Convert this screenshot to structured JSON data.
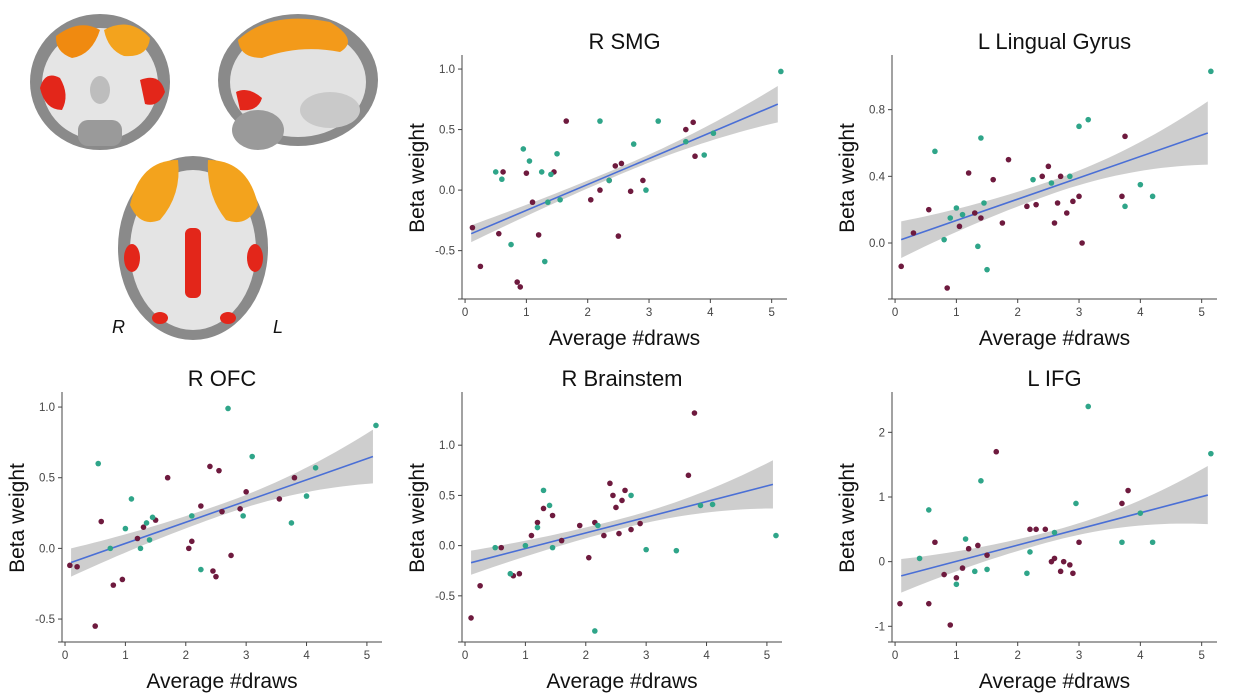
{
  "brain": {
    "left_label": "R",
    "right_label": "L"
  },
  "colors": {
    "series_a": "#6e1a3e",
    "series_b": "#2fa589",
    "fit": "#4a6fd6",
    "band": "#bdbdbd",
    "axis": "#444444"
  },
  "chart_data": [
    {
      "type": "scatter",
      "title": "R SMG",
      "xlabel": "Average #draws",
      "ylabel": "Beta weight",
      "xlim": [
        -0.05,
        5.25
      ],
      "ylim": [
        -0.85,
        1.05
      ],
      "xticks": [
        0,
        1,
        2,
        3,
        4,
        5
      ],
      "yticks": [
        -0.5,
        0.0,
        0.5,
        1.0
      ],
      "ytick_labels": [
        "-0.5",
        "0.0",
        "0.5",
        "1.0"
      ],
      "fit": {
        "x": [
          0.1,
          5.1
        ],
        "y": [
          -0.36,
          0.71
        ]
      },
      "band_halfwidth": [
        0.07,
        0.03,
        0.15
      ],
      "series": [
        {
          "color": "series_a",
          "points": [
            [
              0.12,
              -0.31
            ],
            [
              0.25,
              -0.63
            ],
            [
              0.55,
              -0.36
            ],
            [
              0.62,
              0.15
            ],
            [
              0.85,
              -0.76
            ],
            [
              0.9,
              -0.8
            ],
            [
              1.0,
              0.14
            ],
            [
              1.1,
              -0.1
            ],
            [
              1.2,
              -0.37
            ],
            [
              1.45,
              0.15
            ],
            [
              1.65,
              0.57
            ],
            [
              2.05,
              -0.08
            ],
            [
              2.2,
              0.0
            ],
            [
              2.35,
              0.08
            ],
            [
              2.45,
              0.2
            ],
            [
              2.5,
              -0.38
            ],
            [
              2.55,
              0.22
            ],
            [
              2.7,
              -0.01
            ],
            [
              2.9,
              0.08
            ],
            [
              3.6,
              0.5
            ],
            [
              3.72,
              0.56
            ],
            [
              3.75,
              0.28
            ]
          ]
        },
        {
          "color": "series_b",
          "points": [
            [
              0.5,
              0.15
            ],
            [
              0.6,
              0.09
            ],
            [
              0.75,
              -0.45
            ],
            [
              0.95,
              0.34
            ],
            [
              1.05,
              0.24
            ],
            [
              1.25,
              0.15
            ],
            [
              1.3,
              -0.59
            ],
            [
              1.35,
              -0.1
            ],
            [
              1.4,
              0.13
            ],
            [
              1.5,
              0.3
            ],
            [
              1.55,
              -0.08
            ],
            [
              2.2,
              0.57
            ],
            [
              2.35,
              0.08
            ],
            [
              2.75,
              0.38
            ],
            [
              2.95,
              0.0
            ],
            [
              3.15,
              0.57
            ],
            [
              3.6,
              0.4
            ],
            [
              3.9,
              0.29
            ],
            [
              4.05,
              0.47
            ],
            [
              5.15,
              0.98
            ]
          ]
        }
      ]
    },
    {
      "type": "scatter",
      "title": "L Lingual Gyrus",
      "xlabel": "Average #draws",
      "ylabel": "Beta weight",
      "xlim": [
        -0.05,
        5.25
      ],
      "ylim": [
        -0.3,
        1.08
      ],
      "xticks": [
        0,
        1,
        2,
        3,
        4,
        5
      ],
      "yticks": [
        0.0,
        0.4,
        0.8
      ],
      "ytick_labels": [
        "0.0",
        "0.4",
        "0.8"
      ],
      "fit": {
        "x": [
          0.1,
          5.1
        ],
        "y": [
          0.02,
          0.66
        ]
      },
      "band_halfwidth": [
        0.11,
        0.04,
        0.19
      ],
      "series": [
        {
          "color": "series_a",
          "points": [
            [
              0.1,
              -0.14
            ],
            [
              0.3,
              0.06
            ],
            [
              0.55,
              0.2
            ],
            [
              0.85,
              -0.27
            ],
            [
              1.05,
              0.1
            ],
            [
              1.2,
              0.42
            ],
            [
              1.3,
              0.18
            ],
            [
              1.4,
              0.15
            ],
            [
              1.6,
              0.38
            ],
            [
              1.75,
              0.12
            ],
            [
              1.85,
              0.5
            ],
            [
              2.15,
              0.22
            ],
            [
              2.3,
              0.23
            ],
            [
              2.4,
              0.4
            ],
            [
              2.5,
              0.46
            ],
            [
              2.6,
              0.12
            ],
            [
              2.65,
              0.24
            ],
            [
              2.7,
              0.4
            ],
            [
              2.8,
              0.18
            ],
            [
              2.9,
              0.25
            ],
            [
              3.0,
              0.28
            ],
            [
              3.05,
              0.0
            ],
            [
              3.7,
              0.28
            ],
            [
              3.75,
              0.64
            ]
          ]
        },
        {
          "color": "series_b",
          "points": [
            [
              0.65,
              0.55
            ],
            [
              0.8,
              0.02
            ],
            [
              0.9,
              0.15
            ],
            [
              1.0,
              0.21
            ],
            [
              1.1,
              0.17
            ],
            [
              1.35,
              -0.02
            ],
            [
              1.4,
              0.63
            ],
            [
              1.45,
              0.24
            ],
            [
              1.5,
              -0.16
            ],
            [
              2.25,
              0.38
            ],
            [
              2.55,
              0.36
            ],
            [
              2.85,
              0.4
            ],
            [
              3.0,
              0.7
            ],
            [
              3.15,
              0.74
            ],
            [
              3.75,
              0.22
            ],
            [
              4.0,
              0.35
            ],
            [
              4.2,
              0.28
            ],
            [
              5.15,
              1.03
            ]
          ]
        }
      ]
    },
    {
      "type": "scatter",
      "title": "R OFC",
      "xlabel": "Average #draws",
      "ylabel": "Beta weight",
      "xlim": [
        -0.05,
        5.25
      ],
      "ylim": [
        -0.62,
        1.05
      ],
      "xticks": [
        0,
        1,
        2,
        3,
        4,
        5
      ],
      "yticks": [
        -0.5,
        0.0,
        0.5,
        1.0
      ],
      "ytick_labels": [
        "-0.5",
        "0.0",
        "0.5",
        "1.0"
      ],
      "fit": {
        "x": [
          0.1,
          5.1
        ],
        "y": [
          -0.1,
          0.65
        ]
      },
      "band_halfwidth": [
        0.1,
        0.04,
        0.19
      ],
      "series": [
        {
          "color": "series_a",
          "points": [
            [
              0.08,
              -0.12
            ],
            [
              0.2,
              -0.13
            ],
            [
              0.5,
              -0.55
            ],
            [
              0.6,
              0.19
            ],
            [
              0.8,
              -0.26
            ],
            [
              0.95,
              -0.22
            ],
            [
              1.2,
              0.07
            ],
            [
              1.3,
              0.15
            ],
            [
              1.5,
              0.2
            ],
            [
              1.7,
              0.5
            ],
            [
              2.05,
              0.0
            ],
            [
              2.1,
              0.05
            ],
            [
              2.25,
              0.3
            ],
            [
              2.4,
              0.58
            ],
            [
              2.45,
              -0.16
            ],
            [
              2.5,
              -0.2
            ],
            [
              2.55,
              0.55
            ],
            [
              2.6,
              0.26
            ],
            [
              2.75,
              -0.05
            ],
            [
              2.9,
              0.28
            ],
            [
              3.0,
              0.4
            ],
            [
              3.55,
              0.35
            ],
            [
              3.8,
              0.5
            ]
          ]
        },
        {
          "color": "series_b",
          "points": [
            [
              0.55,
              0.6
            ],
            [
              0.75,
              0.0
            ],
            [
              1.0,
              0.14
            ],
            [
              1.1,
              0.35
            ],
            [
              1.25,
              0.0
            ],
            [
              1.35,
              0.18
            ],
            [
              1.4,
              0.06
            ],
            [
              1.45,
              0.22
            ],
            [
              2.1,
              0.23
            ],
            [
              2.25,
              -0.15
            ],
            [
              2.7,
              0.99
            ],
            [
              2.95,
              0.23
            ],
            [
              3.1,
              0.65
            ],
            [
              3.75,
              0.18
            ],
            [
              4.0,
              0.37
            ],
            [
              4.15,
              0.57
            ],
            [
              5.15,
              0.87
            ]
          ]
        }
      ]
    },
    {
      "type": "scatter",
      "title": "R Brainstem",
      "xlabel": "Average #draws",
      "ylabel": "Beta weight",
      "xlim": [
        -0.05,
        5.25
      ],
      "ylim": [
        -0.9,
        1.45
      ],
      "xticks": [
        0,
        1,
        2,
        3,
        4,
        5
      ],
      "yticks": [
        -0.5,
        0.0,
        0.5,
        1.0
      ],
      "ytick_labels": [
        "-0.5",
        "0.0",
        "0.5",
        "1.0"
      ],
      "fit": {
        "x": [
          0.1,
          5.1
        ],
        "y": [
          -0.17,
          0.61
        ]
      },
      "band_halfwidth": [
        0.12,
        0.05,
        0.24
      ],
      "series": [
        {
          "color": "series_a",
          "points": [
            [
              0.1,
              -0.72
            ],
            [
              0.25,
              -0.4
            ],
            [
              0.6,
              -0.02
            ],
            [
              0.8,
              -0.3
            ],
            [
              0.9,
              -0.28
            ],
            [
              1.1,
              0.1
            ],
            [
              1.2,
              0.23
            ],
            [
              1.3,
              0.37
            ],
            [
              1.45,
              0.3
            ],
            [
              1.6,
              0.05
            ],
            [
              1.9,
              0.2
            ],
            [
              2.05,
              -0.12
            ],
            [
              2.15,
              0.23
            ],
            [
              2.3,
              0.1
            ],
            [
              2.4,
              0.62
            ],
            [
              2.45,
              0.5
            ],
            [
              2.5,
              0.38
            ],
            [
              2.55,
              0.12
            ],
            [
              2.6,
              0.45
            ],
            [
              2.65,
              0.55
            ],
            [
              2.75,
              0.16
            ],
            [
              2.9,
              0.22
            ],
            [
              3.7,
              0.7
            ],
            [
              3.8,
              1.32
            ]
          ]
        },
        {
          "color": "series_b",
          "points": [
            [
              0.5,
              -0.02
            ],
            [
              0.75,
              -0.28
            ],
            [
              1.0,
              0.0
            ],
            [
              1.2,
              0.18
            ],
            [
              1.3,
              0.55
            ],
            [
              1.4,
              0.4
            ],
            [
              1.45,
              -0.02
            ],
            [
              2.15,
              -0.85
            ],
            [
              2.2,
              0.2
            ],
            [
              2.75,
              0.5
            ],
            [
              3.0,
              -0.04
            ],
            [
              3.5,
              -0.05
            ],
            [
              3.9,
              0.4
            ],
            [
              4.1,
              0.41
            ],
            [
              5.15,
              0.1
            ]
          ]
        }
      ]
    },
    {
      "type": "scatter",
      "title": "L IFG",
      "xlabel": "Average #draws",
      "ylabel": "Beta weight",
      "xlim": [
        -0.05,
        5.25
      ],
      "ylim": [
        -1.15,
        2.5
      ],
      "xticks": [
        0,
        1,
        2,
        3,
        4,
        5
      ],
      "yticks": [
        -1,
        0,
        1,
        2
      ],
      "ytick_labels": [
        "-1",
        "0",
        "1",
        "2"
      ],
      "fit": {
        "x": [
          0.1,
          5.1
        ],
        "y": [
          -0.22,
          1.03
        ]
      },
      "band_halfwidth": [
        0.26,
        0.08,
        0.45
      ],
      "series": [
        {
          "color": "series_a",
          "points": [
            [
              0.08,
              -0.65
            ],
            [
              0.55,
              -0.65
            ],
            [
              0.65,
              0.3
            ],
            [
              0.8,
              -0.2
            ],
            [
              0.9,
              -0.98
            ],
            [
              1.0,
              -0.25
            ],
            [
              1.1,
              -0.1
            ],
            [
              1.2,
              0.2
            ],
            [
              1.35,
              0.25
            ],
            [
              1.5,
              0.1
            ],
            [
              1.65,
              1.7
            ],
            [
              2.2,
              0.5
            ],
            [
              2.3,
              0.5
            ],
            [
              2.45,
              0.5
            ],
            [
              2.55,
              0.0
            ],
            [
              2.6,
              0.05
            ],
            [
              2.7,
              -0.15
            ],
            [
              2.75,
              0.0
            ],
            [
              2.85,
              -0.05
            ],
            [
              2.9,
              -0.18
            ],
            [
              3.0,
              0.3
            ],
            [
              3.7,
              0.9
            ],
            [
              3.8,
              1.1
            ]
          ]
        },
        {
          "color": "series_b",
          "points": [
            [
              0.4,
              0.05
            ],
            [
              0.55,
              0.8
            ],
            [
              1.0,
              -0.35
            ],
            [
              1.15,
              0.35
            ],
            [
              1.3,
              -0.15
            ],
            [
              1.4,
              1.25
            ],
            [
              1.5,
              -0.12
            ],
            [
              2.15,
              -0.18
            ],
            [
              2.2,
              0.15
            ],
            [
              2.6,
              0.45
            ],
            [
              2.95,
              0.9
            ],
            [
              3.15,
              2.4
            ],
            [
              3.7,
              0.3
            ],
            [
              4.0,
              0.75
            ],
            [
              4.2,
              0.3
            ],
            [
              5.15,
              1.67
            ]
          ]
        }
      ]
    }
  ]
}
